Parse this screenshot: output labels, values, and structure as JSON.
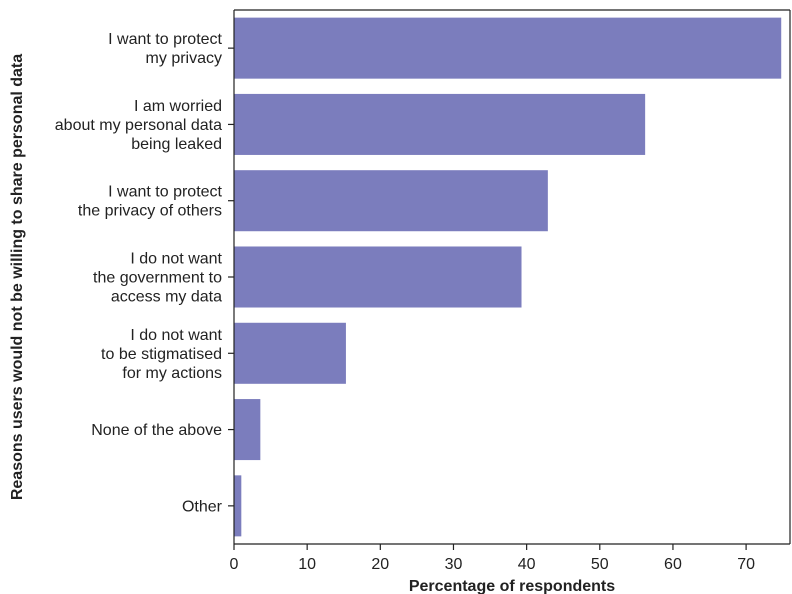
{
  "chart_data": {
    "type": "bar",
    "orientation": "horizontal",
    "categories": [
      [
        "I want to protect",
        "my privacy"
      ],
      [
        "I am worried",
        "about my personal data",
        "being leaked"
      ],
      [
        "I want to protect",
        "the privacy of others"
      ],
      [
        "I do not want",
        "the government to",
        "access my data"
      ],
      [
        "I do not want",
        "to be stigmatised",
        "for my actions"
      ],
      [
        "None of the above"
      ],
      [
        "Other"
      ]
    ],
    "values": [
      74.8,
      56.2,
      42.9,
      39.3,
      15.3,
      3.6,
      1.0
    ],
    "xlabel": "Percentage of respondents",
    "ylabel": "Reasons users would not be willing to share personal data",
    "xlim": [
      0,
      76
    ],
    "xticks": [
      0,
      10,
      20,
      30,
      40,
      50,
      60,
      70
    ],
    "bar_color": "#7b7dbd",
    "grid": false
  }
}
